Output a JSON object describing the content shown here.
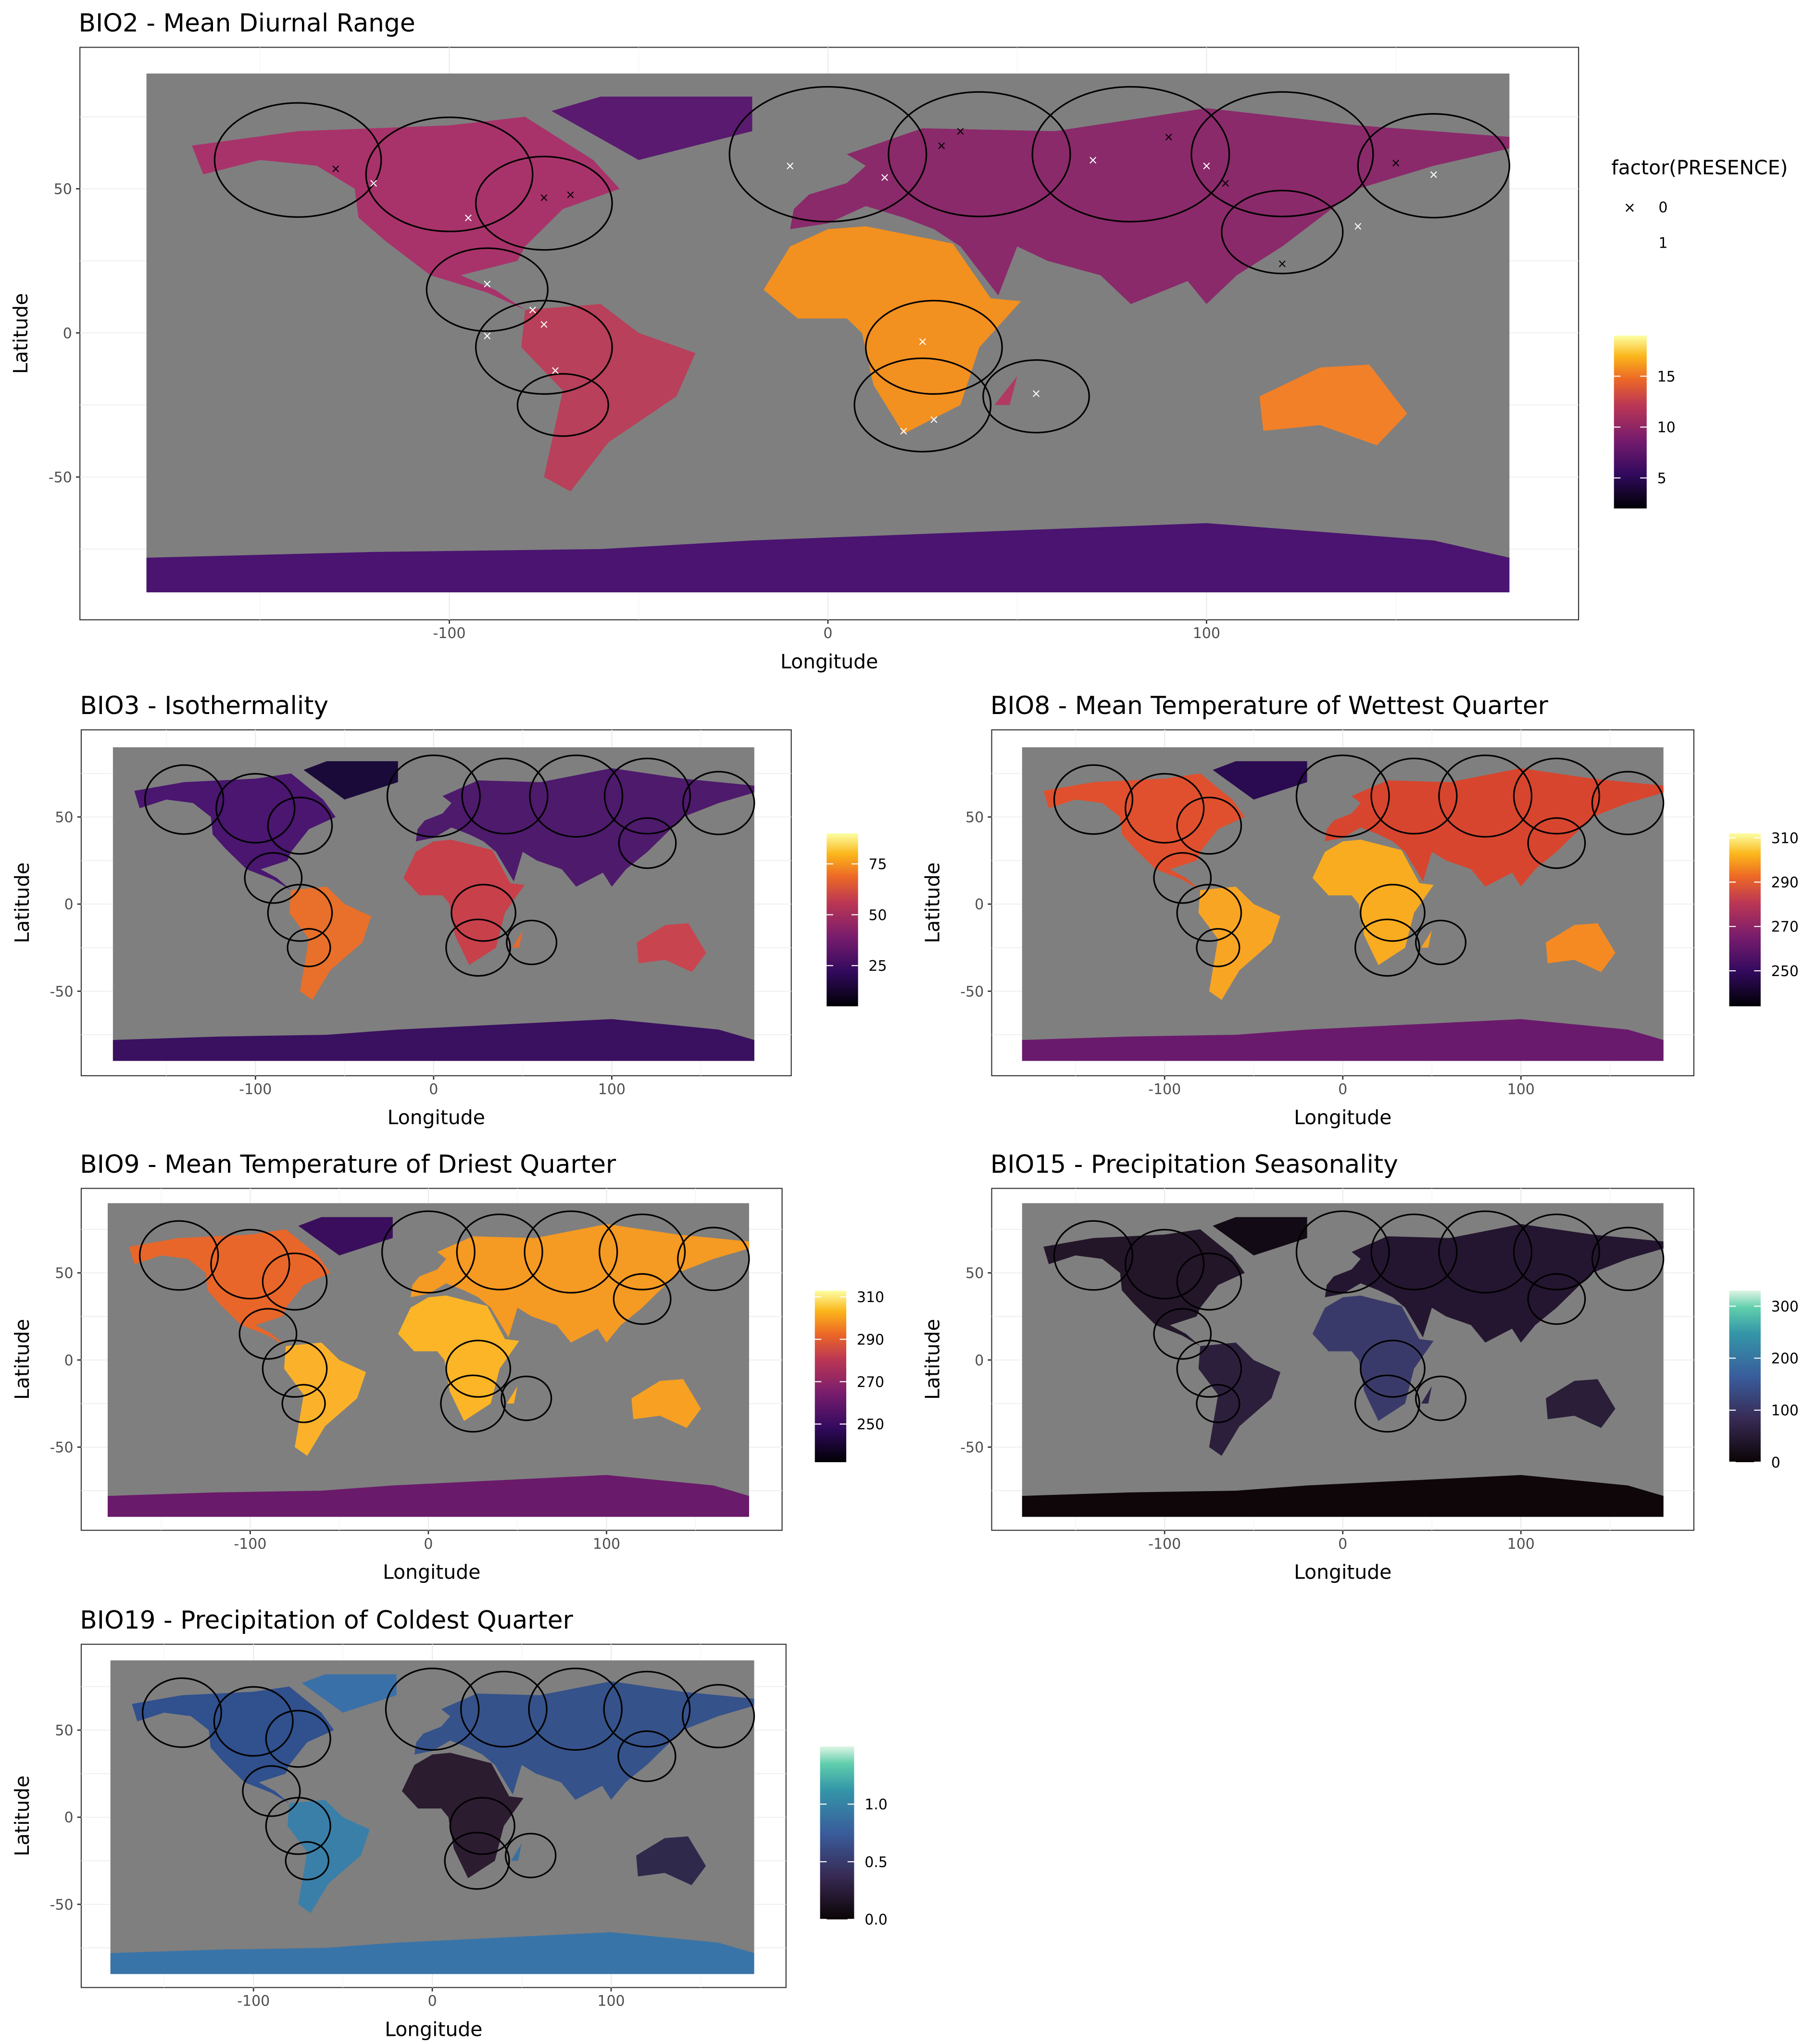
{
  "chart_data": [
    {
      "type": "heatmap",
      "title": "BIO2 - Mean Diurnal Range",
      "xlabel": "Longitude",
      "ylabel": "Latitude",
      "xticks": [
        "-100",
        "0",
        "100"
      ],
      "xtick_values": [
        -100,
        0,
        100
      ],
      "yticks": [
        "50",
        "0",
        "-50"
      ],
      "ytick_values": [
        50,
        0,
        -50
      ],
      "xlim": [
        -180,
        180
      ],
      "ylim": [
        -90,
        90
      ],
      "palette": "inferno",
      "colorbar": {
        "labels": [
          "15",
          "10",
          "5"
        ],
        "values": [
          15,
          10,
          5
        ],
        "range": [
          2,
          19
        ]
      },
      "legend": {
        "title": "factor(PRESENCE)",
        "entries": [
          {
            "label": "0",
            "symbol": "×",
            "color": "#000000"
          },
          {
            "label": "1",
            "symbol": "×",
            "color": "#ffffff"
          }
        ],
        "placement": "right"
      },
      "presence_points": {
        "absent": [
          [
            -130,
            57
          ],
          [
            -75,
            47
          ],
          [
            -68,
            48
          ],
          [
            30,
            65
          ],
          [
            35,
            70
          ],
          [
            90,
            68
          ],
          [
            105,
            52
          ],
          [
            120,
            24
          ],
          [
            150,
            59
          ]
        ],
        "present": [
          [
            -120,
            52
          ],
          [
            -95,
            40
          ],
          [
            -90,
            17
          ],
          [
            -78,
            8
          ],
          [
            -75,
            3
          ],
          [
            -90,
            -1
          ],
          [
            -72,
            -13
          ],
          [
            -10,
            58
          ],
          [
            15,
            54
          ],
          [
            25,
            -3
          ],
          [
            28,
            -30
          ],
          [
            20,
            -34
          ],
          [
            55,
            -21
          ],
          [
            70,
            60
          ],
          [
            100,
            58
          ],
          [
            140,
            37
          ],
          [
            160,
            55
          ]
        ]
      }
    },
    {
      "type": "heatmap",
      "title": "BIO3 - Isothermality",
      "xlabel": "Longitude",
      "ylabel": "Latitude",
      "xticks": [
        "-100",
        "0",
        "100"
      ],
      "xtick_values": [
        -100,
        0,
        100
      ],
      "yticks": [
        "50",
        "0",
        "-50"
      ],
      "ytick_values": [
        50,
        0,
        -50
      ],
      "xlim": [
        -180,
        180
      ],
      "ylim": [
        -90,
        90
      ],
      "palette": "inferno",
      "colorbar": {
        "labels": [
          "75",
          "50",
          "25"
        ],
        "values": [
          75,
          50,
          25
        ],
        "range": [
          5,
          90
        ]
      }
    },
    {
      "type": "heatmap",
      "title": "BIO8 - Mean Temperature of Wettest Quarter",
      "xlabel": "Longitude",
      "ylabel": "Latitude",
      "xticks": [
        "-100",
        "0",
        "100"
      ],
      "xtick_values": [
        -100,
        0,
        100
      ],
      "yticks": [
        "50",
        "0",
        "-50"
      ],
      "ytick_values": [
        50,
        0,
        -50
      ],
      "xlim": [
        -180,
        180
      ],
      "ylim": [
        -90,
        90
      ],
      "palette": "inferno",
      "colorbar": {
        "labels": [
          "310",
          "290",
          "270",
          "250"
        ],
        "values": [
          310,
          290,
          270,
          250
        ],
        "range": [
          234,
          312
        ]
      }
    },
    {
      "type": "heatmap",
      "title": "BIO9 - Mean Temperature of Driest Quarter",
      "xlabel": "Longitude",
      "ylabel": "Latitude",
      "xticks": [
        "-100",
        "0",
        "100"
      ],
      "xtick_values": [
        -100,
        0,
        100
      ],
      "yticks": [
        "50",
        "0",
        "-50"
      ],
      "ytick_values": [
        50,
        0,
        -50
      ],
      "xlim": [
        -180,
        180
      ],
      "ylim": [
        -90,
        90
      ],
      "palette": "inferno",
      "colorbar": {
        "labels": [
          "310",
          "290",
          "270",
          "250"
        ],
        "values": [
          310,
          290,
          270,
          250
        ],
        "range": [
          232,
          313
        ]
      }
    },
    {
      "type": "heatmap",
      "title": "BIO15 - Precipitation Seasonality",
      "xlabel": "Longitude",
      "ylabel": "Latitude",
      "xticks": [
        "-100",
        "0",
        "100"
      ],
      "xtick_values": [
        -100,
        0,
        100
      ],
      "yticks": [
        "50",
        "0",
        "-50"
      ],
      "ytick_values": [
        50,
        0,
        -50
      ],
      "xlim": [
        -180,
        180
      ],
      "ylim": [
        -90,
        90
      ],
      "palette": "mako",
      "colorbar": {
        "labels": [
          "300",
          "200",
          "100",
          "0"
        ],
        "values": [
          300,
          200,
          100,
          0
        ],
        "range": [
          0,
          330
        ]
      }
    },
    {
      "type": "heatmap",
      "title": "BIO19 - Precipitation of Coldest Quarter",
      "xlabel": "Longitude",
      "ylabel": "Latitude",
      "xticks": [
        "-100",
        "0",
        "100"
      ],
      "xtick_values": [
        -100,
        0,
        100
      ],
      "yticks": [
        "50",
        "0",
        "-50"
      ],
      "ytick_values": [
        50,
        0,
        -50
      ],
      "xlim": [
        -180,
        180
      ],
      "ylim": [
        -90,
        90
      ],
      "palette": "mako",
      "colorbar": {
        "labels": [
          "1.0",
          "0.5",
          "0.0"
        ],
        "values": [
          1.0,
          0.5,
          0.0
        ],
        "range": [
          0,
          1.5
        ]
      }
    }
  ],
  "colors": {
    "ocean": "#7f7f7f",
    "buffer_outline": "#000000"
  }
}
